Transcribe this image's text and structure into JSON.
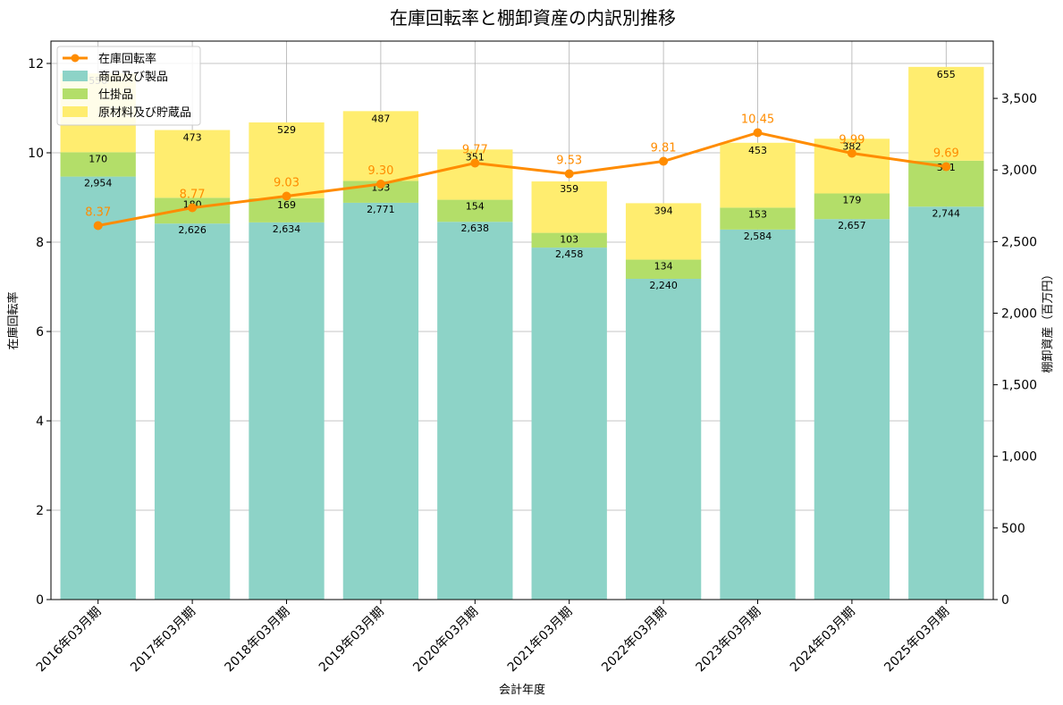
{
  "chart_data": {
    "type": "bar",
    "title": "在庫回転率と棚卸資産の内訳別推移",
    "xlabel": "会計年度",
    "ylabel_left": "在庫回転率",
    "ylabel_right": "棚卸資産（百万円）",
    "categories": [
      "2016年03月期",
      "2017年03月期",
      "2018年03月期",
      "2019年03月期",
      "2020年03月期",
      "2021年03月期",
      "2022年03月期",
      "2023年03月期",
      "2024年03月期",
      "2025年03月期"
    ],
    "stacked_series": [
      {
        "name": "商品及び製品",
        "color": "#8dd3c7",
        "values": [
          2954,
          2626,
          2634,
          2771,
          2638,
          2458,
          2240,
          2584,
          2657,
          2744
        ]
      },
      {
        "name": "仕掛品",
        "color": "#b3de69",
        "values": [
          170,
          180,
          169,
          153,
          154,
          103,
          134,
          153,
          179,
          321
        ]
      },
      {
        "name": "原材料及び貯蔵品",
        "color": "#ffed6f",
        "values": [
          550,
          473,
          529,
          487,
          351,
          359,
          394,
          453,
          382,
          655
        ]
      }
    ],
    "line_series": {
      "name": "在庫回転率",
      "color": "#ff8c00",
      "values": [
        8.37,
        8.77,
        9.03,
        9.3,
        9.77,
        9.53,
        9.81,
        10.45,
        9.99,
        9.69
      ]
    },
    "ylim_left": [
      0,
      12.5
    ],
    "yticks_left": [
      0,
      2,
      4,
      6,
      8,
      10,
      12
    ],
    "ylim_right": [
      0,
      3900
    ],
    "yticks_right": [
      0,
      500,
      1000,
      1500,
      2000,
      2500,
      3000,
      3500
    ],
    "grid": true,
    "legend": "top-left"
  }
}
